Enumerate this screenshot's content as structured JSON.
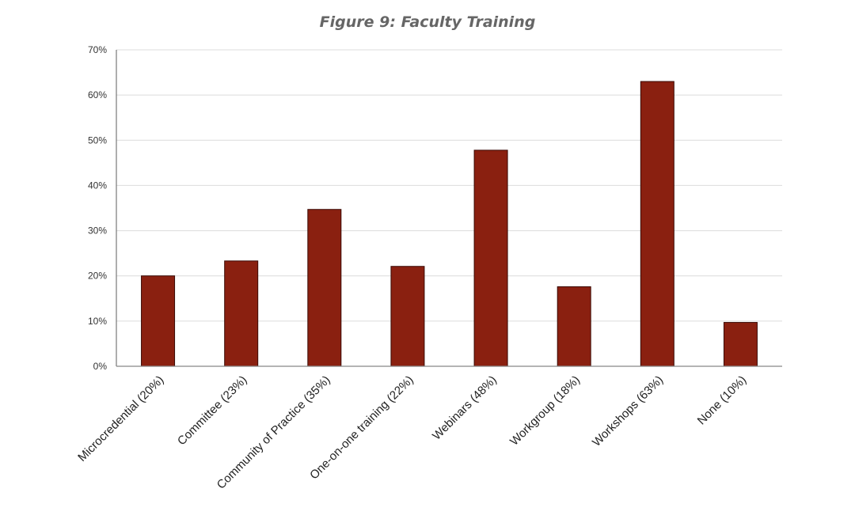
{
  "chart_data": {
    "type": "bar",
    "title": "Figure 9: Faculty Training",
    "xlabel": "",
    "ylabel": "",
    "categories": [
      "Microcredential (20%)",
      "Committee (23%)",
      "Community of Practice (35%)",
      "One-on-one training (22%)",
      "Webinars (48%)",
      "Workgroup (18%)",
      "Workshops (63%)",
      "None (10%)"
    ],
    "values": [
      20,
      23.3,
      34.7,
      22.1,
      47.8,
      17.6,
      63,
      9.7
    ],
    "ylim": [
      0,
      70
    ],
    "yticks": [
      0,
      10,
      20,
      30,
      40,
      50,
      60,
      70
    ],
    "ytick_labels": [
      "0%",
      "10%",
      "20%",
      "30%",
      "40%",
      "50%",
      "60%",
      "70%"
    ],
    "grid": true,
    "bar_color": "#8a2010"
  }
}
